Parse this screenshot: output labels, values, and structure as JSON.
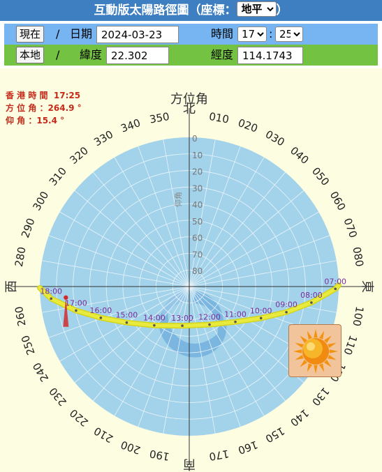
{
  "header": {
    "title": "互動版太陽路徑圖（座標：",
    "coord_value": "地平",
    "title_end": "）"
  },
  "date_row": {
    "now_button": "現在",
    "sep": "/",
    "date_label": "日期",
    "date_value": "2024-03-23",
    "time_label": "時間",
    "hour_value": "17",
    "minute_value": "25"
  },
  "location_row": {
    "local_button": "本地",
    "sep": "/",
    "lat_label": "緯度",
    "lat_value": "22.302",
    "lon_label": "經度",
    "lon_value": "114.1743"
  },
  "readout": {
    "time_label": "香 港 時 間",
    "time_value": "17:25",
    "azimuth_label": "方 位 角 ：",
    "azimuth_value": "264.9 °",
    "altitude_label": "仰 角 ：",
    "altitude_value": "15.4 °"
  },
  "diagram": {
    "azimuth_title": "方位角",
    "elevation_title": "仰角",
    "cardinals": {
      "north": "北",
      "east": "東",
      "south": "南",
      "west": "西"
    },
    "azimuth_labels": [
      "010",
      "020",
      "030",
      "040",
      "050",
      "060",
      "070",
      "080",
      "100",
      "110",
      "120",
      "130",
      "140",
      "150",
      "160",
      "170",
      "190",
      "200",
      "210",
      "220",
      "230",
      "240",
      "250",
      "260",
      "280",
      "290",
      "300",
      "310",
      "320",
      "330",
      "340",
      "350"
    ],
    "elevation_labels": [
      "0",
      "10",
      "20",
      "30",
      "40",
      "50",
      "60",
      "70",
      "80"
    ],
    "hour_labels": [
      "07:00",
      "08:00",
      "09:00",
      "10:00",
      "11:00",
      "12:00",
      "13:00",
      "14:00",
      "15:00",
      "16:00",
      "17:00",
      "18:00"
    ],
    "colors": {
      "disc": "#a3d3ea",
      "sun_path": "#e9ea3e",
      "hour_text": "#7a2d9c",
      "readout": "#c42a1a",
      "marker": "#d22a2a"
    }
  },
  "sun_path": [
    {
      "t": "07:00",
      "az": 90.9,
      "alt": 2.0
    },
    {
      "t": "08:00",
      "az": 97.5,
      "alt": 15.8
    },
    {
      "t": "09:00",
      "az": 104.8,
      "alt": 29.5
    },
    {
      "t": "10:00",
      "az": 113.8,
      "alt": 42.8
    },
    {
      "t": "11:00",
      "az": 127.5,
      "alt": 55.0
    },
    {
      "t": "12:00",
      "az": 152.0,
      "alt": 64.0
    },
    {
      "t": "13:00",
      "az": 190.0,
      "alt": 66.0
    },
    {
      "t": "14:00",
      "az": 222.0,
      "alt": 58.5
    },
    {
      "t": "15:00",
      "az": 240.0,
      "alt": 46.5
    },
    {
      "t": "16:00",
      "az": 250.5,
      "alt": 33.5
    },
    {
      "t": "17:00",
      "az": 258.0,
      "alt": 20.3
    },
    {
      "t": "18:00",
      "az": 265.0,
      "alt": 6.5
    }
  ],
  "current_sun": {
    "az": 264.9,
    "alt": 15.4
  }
}
